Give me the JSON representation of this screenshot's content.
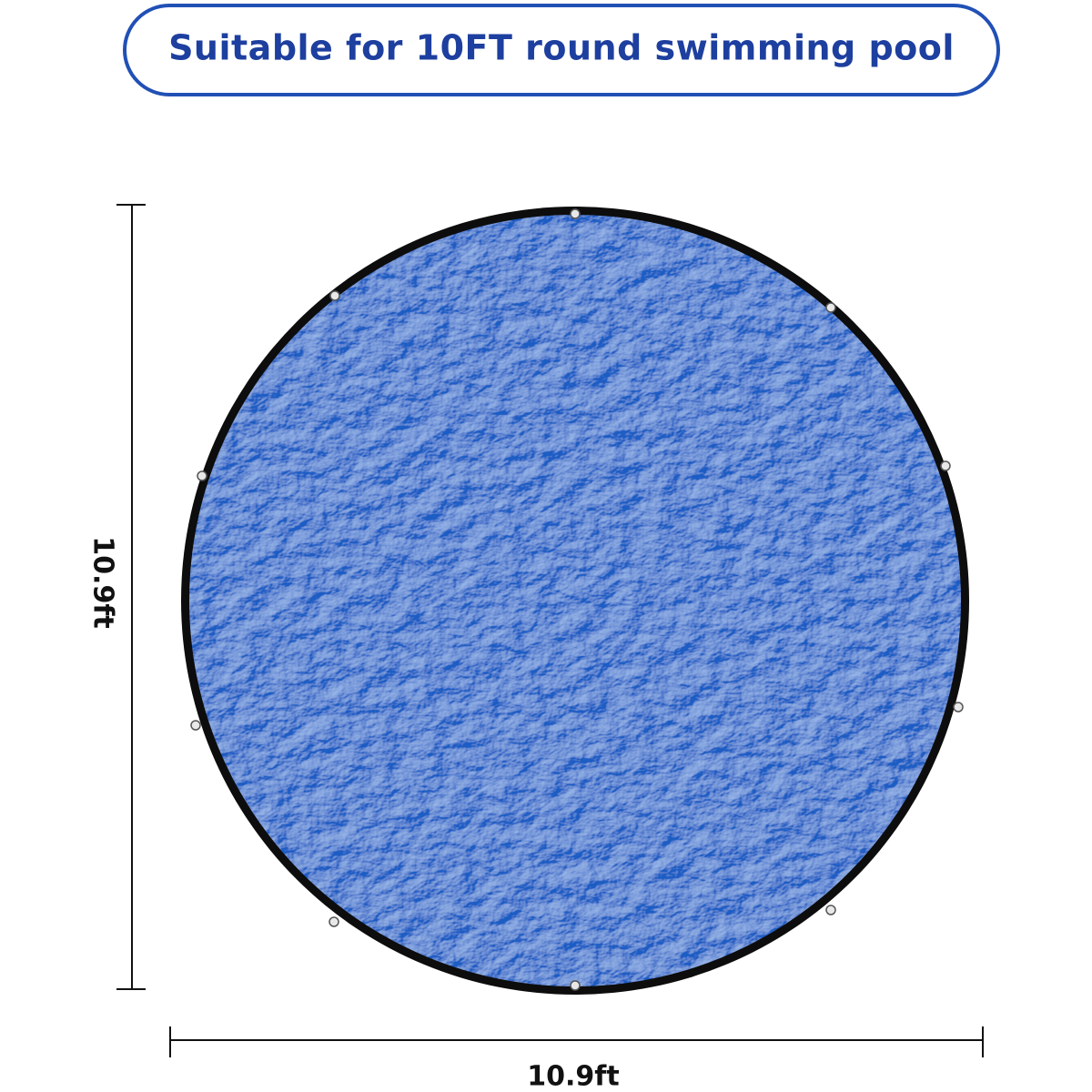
{
  "banner": {
    "text": "Suitable for 10FT round swimming pool"
  },
  "dimensions": {
    "height": "10.9ft",
    "width": "10.9ft"
  }
}
